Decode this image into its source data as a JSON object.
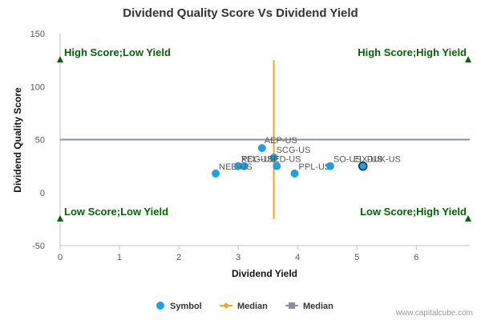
{
  "chart_data": {
    "type": "scatter",
    "title": "Dividend Quality Score Vs Dividend Yield",
    "xlabel": "Dividend Yield",
    "ylabel": "Dividend Quality Score",
    "xlim": [
      0,
      6.9
    ],
    "ylim": [
      -50,
      150
    ],
    "x_ticks": [
      0,
      1,
      2,
      3,
      4,
      5,
      6
    ],
    "y_ticks": [
      -50,
      0,
      50,
      100,
      150
    ],
    "grid": false,
    "legend": "bottom",
    "series": [
      {
        "name": "Symbol",
        "color": "#1aa1e6",
        "points": [
          {
            "label": "AEP-US",
            "x": 3.4,
            "y": 42
          },
          {
            "label": "SCG-US",
            "x": 3.6,
            "y": 33
          },
          {
            "label": "ED-US",
            "x": 3.65,
            "y": 25
          },
          {
            "label": "PCG-US",
            "x": 3.0,
            "y": 25
          },
          {
            "label": "XEL-US",
            "x": 3.1,
            "y": 25
          },
          {
            "label": "NEE-US",
            "x": 2.62,
            "y": 18
          },
          {
            "label": "PPL-US",
            "x": 3.95,
            "y": 18
          },
          {
            "label": "SO-US",
            "x": 4.55,
            "y": 25
          },
          {
            "label": "DUK-US",
            "x": 5.1,
            "y": 25
          },
          {
            "label": "EIX-US",
            "x": 5.1,
            "y": 25
          }
        ]
      },
      {
        "name": "Median",
        "color": "#f5a623",
        "type": "vertical-line",
        "x": 3.6,
        "y_range": [
          -25,
          125
        ]
      },
      {
        "name": "Median",
        "color": "#8a8fa0",
        "type": "horizontal-line",
        "y": 50,
        "x_range": [
          0,
          6.9
        ]
      }
    ],
    "quadrant_labels": {
      "top_left": "High Score;Low Yield",
      "top_right": "High Score;High Yield",
      "bottom_left": "Low Score;Low Yield",
      "bottom_right": "Low Score;High Yield"
    },
    "quadrant_marker_color": "#006400",
    "credit": "www.capitalcube.com"
  }
}
